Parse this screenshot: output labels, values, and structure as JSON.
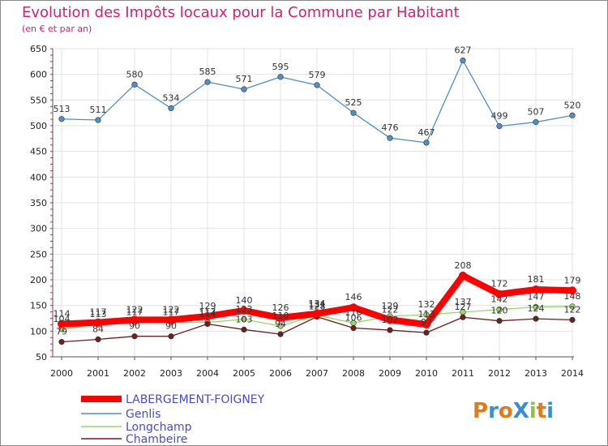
{
  "chart_data": {
    "type": "line",
    "title": "Evolution des Impôts locaux pour la Commune par Habitant",
    "subtitle": "(en € et par an)",
    "x": [
      "2000",
      "2001",
      "2002",
      "2003",
      "2004",
      "2005",
      "2006",
      "2007",
      "2008",
      "2009",
      "2010",
      "2011",
      "2012",
      "2013",
      "2014"
    ],
    "ylim": [
      50,
      650
    ],
    "yticks": [
      "50",
      "100",
      "150",
      "200",
      "250",
      "300",
      "350",
      "400",
      "450",
      "500",
      "550",
      "600",
      "650"
    ],
    "grid": true,
    "legend_position": "bottom-left",
    "series": [
      {
        "name": "LABERGEMENT-FOIGNEY",
        "color": "#ff0000",
        "values": [
          114,
          117,
          122,
          122,
          129,
          140,
          126,
          134,
          146,
          122,
          113,
          208,
          172,
          181,
          179
        ]
      },
      {
        "name": "Genlis",
        "color": "#4f8fc9",
        "values": [
          513,
          511,
          580,
          534,
          585,
          571,
          595,
          579,
          525,
          476,
          467,
          627,
          499,
          507,
          520
        ]
      },
      {
        "name": "Longchamp",
        "color": "#9ad86a",
        "values": [
          104,
          113,
          117,
          117,
          117,
          123,
          110,
          131,
          116,
          129,
          132,
          137,
          142,
          147,
          148
        ]
      },
      {
        "name": "Chambeire",
        "color": "#6b1f1f",
        "values": [
          79,
          84,
          90,
          90,
          114,
          103,
          94,
          128,
          106,
          102,
          97,
          127,
          120,
          124,
          122
        ]
      }
    ]
  },
  "logo": {
    "text": "ProXiti"
  }
}
